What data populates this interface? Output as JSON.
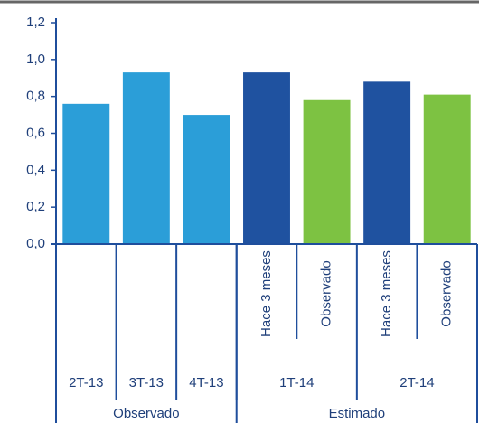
{
  "chart_data": {
    "type": "bar",
    "categories": [
      null,
      null,
      null,
      "Hace 3 meses",
      "Observado",
      "Hace 3 meses",
      "Observado"
    ],
    "periods": [
      "2T-13",
      "3T-13",
      "4T-13",
      "1T-14",
      "2T-14"
    ],
    "phases": [
      "Observado",
      "Estimado"
    ],
    "values": [
      0.76,
      0.93,
      0.7,
      0.93,
      0.78,
      0.88,
      0.81
    ],
    "colors": [
      "#2b9ed8",
      "#2b9ed8",
      "#2b9ed8",
      "#1f52a0",
      "#7dc242",
      "#1f52a0",
      "#7dc242"
    ],
    "ylim": [
      0,
      1.2
    ],
    "yticks": [
      {
        "value": 0,
        "label": "0,0"
      },
      {
        "value": 0.2,
        "label": "0,2"
      },
      {
        "value": 0.4,
        "label": "0,4"
      },
      {
        "value": 0.6,
        "label": "0,6"
      },
      {
        "value": 0.8,
        "label": "0,8"
      },
      {
        "value": 1.0,
        "label": "1,0"
      },
      {
        "value": 1.2,
        "label": "1,2"
      }
    ],
    "grid": false
  }
}
